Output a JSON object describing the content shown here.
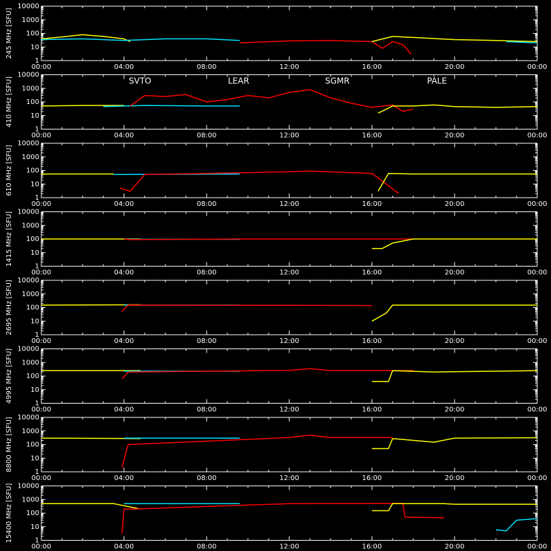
{
  "chart_data": {
    "type": "line",
    "x_axis": {
      "ticks": [
        "00:00",
        "04:00",
        "08:00",
        "12:00",
        "16:00",
        "20:00",
        "00:00"
      ],
      "range_hours": [
        0,
        24
      ]
    },
    "y_axis": {
      "scale": "log",
      "ticks": [
        "10000",
        "1000",
        "100",
        "10",
        "1"
      ],
      "range": [
        1,
        10000
      ]
    },
    "stations": [
      {
        "name": "SVTO",
        "color": "#ff0000"
      },
      {
        "name": "LEAR",
        "color": "#00e5ff"
      },
      {
        "name": "SGMR",
        "color": "#00ff00"
      },
      {
        "name": "PALE",
        "color": "#ffff00"
      }
    ],
    "panels": [
      {
        "label": "245 MHz [SFU]",
        "series": [
          {
            "station": "PALE",
            "points": [
              [
                0,
                40
              ],
              [
                1,
                55
              ],
              [
                2,
                80
              ],
              [
                3,
                60
              ],
              [
                4,
                40
              ],
              [
                4.3,
                25
              ]
            ]
          },
          {
            "station": "LEAR",
            "points": [
              [
                0,
                35
              ],
              [
                2,
                40
              ],
              [
                4,
                30
              ],
              [
                6,
                40
              ],
              [
                8,
                40
              ],
              [
                9.6,
                30
              ]
            ]
          },
          {
            "station": "SVTO",
            "points": [
              [
                9.6,
                20
              ],
              [
                12,
                28
              ],
              [
                14,
                30
              ],
              [
                16,
                25
              ],
              [
                16.5,
                8
              ],
              [
                17,
                25
              ],
              [
                17.5,
                15
              ],
              [
                17.9,
                3
              ]
            ]
          },
          {
            "station": "PALE",
            "points": [
              [
                16,
                25
              ],
              [
                17,
                60
              ],
              [
                18,
                50
              ],
              [
                20,
                35
              ],
              [
                22,
                30
              ],
              [
                24,
                25
              ]
            ]
          },
          {
            "station": "LEAR",
            "points": [
              [
                22.5,
                25
              ],
              [
                24,
                20
              ]
            ]
          }
        ]
      },
      {
        "label": "410 MHz [SFU]",
        "series": [
          {
            "station": "PALE",
            "points": [
              [
                0,
                50
              ],
              [
                2,
                55
              ],
              [
                4,
                55
              ]
            ]
          },
          {
            "station": "LEAR",
            "points": [
              [
                3,
                45
              ],
              [
                5,
                55
              ],
              [
                8,
                50
              ],
              [
                9.6,
                50
              ]
            ]
          },
          {
            "station": "SVTO",
            "points": [
              [
                4.3,
                50
              ],
              [
                5,
                300
              ],
              [
                6,
                250
              ],
              [
                7,
                350
              ],
              [
                8,
                100
              ],
              [
                9,
                150
              ],
              [
                10,
                300
              ],
              [
                11,
                200
              ],
              [
                12,
                500
              ],
              [
                13,
                800
              ],
              [
                14,
                200
              ],
              [
                15,
                80
              ],
              [
                16,
                40
              ],
              [
                17,
                60
              ],
              [
                17.5,
                20
              ],
              [
                18,
                30
              ]
            ]
          },
          {
            "station": "PALE",
            "points": [
              [
                16.3,
                15
              ],
              [
                17,
                50
              ],
              [
                18,
                50
              ],
              [
                19,
                60
              ],
              [
                20,
                45
              ],
              [
                22,
                40
              ],
              [
                24,
                45
              ]
            ]
          }
        ]
      },
      {
        "label": "610 MHz [SFU]",
        "series": [
          {
            "station": "PALE",
            "points": [
              [
                0,
                55
              ],
              [
                3.5,
                55
              ]
            ]
          },
          {
            "station": "LEAR",
            "points": [
              [
                3.5,
                50
              ],
              [
                9.6,
                55
              ]
            ]
          },
          {
            "station": "SVTO",
            "points": [
              [
                3.8,
                5
              ],
              [
                4.3,
                3
              ],
              [
                5,
                50
              ],
              [
                8,
                60
              ],
              [
                10,
                70
              ],
              [
                12,
                80
              ],
              [
                13,
                90
              ],
              [
                15,
                70
              ],
              [
                16,
                60
              ],
              [
                16.7,
                10
              ],
              [
                17.3,
                2
              ]
            ]
          },
          {
            "station": "PALE",
            "points": [
              [
                16.3,
                3
              ],
              [
                16.8,
                60
              ],
              [
                18,
                55
              ],
              [
                20,
                55
              ],
              [
                24,
                55
              ]
            ]
          }
        ]
      },
      {
        "label": "1415 MHz [SFU]",
        "series": [
          {
            "station": "PALE",
            "points": [
              [
                0,
                100
              ],
              [
                4.8,
                100
              ]
            ]
          },
          {
            "station": "LEAR",
            "points": [
              [
                4,
                95
              ],
              [
                9.6,
                95
              ]
            ]
          },
          {
            "station": "SVTO",
            "points": [
              [
                4,
                100
              ],
              [
                4.3,
                90
              ],
              [
                9.6,
                100
              ],
              [
                18,
                100
              ]
            ]
          },
          {
            "station": "PALE",
            "points": [
              [
                16,
                20
              ],
              [
                16.5,
                20
              ],
              [
                17,
                50
              ],
              [
                18,
                100
              ],
              [
                24,
                100
              ]
            ]
          }
        ]
      },
      {
        "label": "2695 MHz [SFU]",
        "series": [
          {
            "station": "PALE",
            "points": [
              [
                0,
                150
              ],
              [
                4.8,
                160
              ]
            ]
          },
          {
            "station": "LEAR",
            "points": [
              [
                4,
                150
              ],
              [
                9.6,
                150
              ]
            ]
          },
          {
            "station": "SVTO",
            "points": [
              [
                3.9,
                50
              ],
              [
                4.2,
                150
              ],
              [
                12,
                145
              ],
              [
                16,
                140
              ]
            ]
          },
          {
            "station": "PALE",
            "points": [
              [
                16,
                10
              ],
              [
                16.7,
                40
              ],
              [
                17,
                150
              ],
              [
                24,
                150
              ]
            ]
          }
        ]
      },
      {
        "label": "4995 MHz [SFU]",
        "series": [
          {
            "station": "PALE",
            "points": [
              [
                0,
                250
              ],
              [
                4.8,
                250
              ]
            ]
          },
          {
            "station": "LEAR",
            "points": [
              [
                4,
                230
              ],
              [
                9.6,
                230
              ]
            ]
          },
          {
            "station": "SVTO",
            "points": [
              [
                3.9,
                60
              ],
              [
                4.2,
                200
              ],
              [
                12,
                260
              ],
              [
                13,
                350
              ],
              [
                14,
                250
              ],
              [
                18,
                250
              ]
            ]
          },
          {
            "station": "PALE",
            "points": [
              [
                16,
                40
              ],
              [
                16.8,
                40
              ],
              [
                17,
                250
              ],
              [
                19,
                200
              ],
              [
                24,
                250
              ]
            ]
          }
        ]
      },
      {
        "label": "8800 MHz [SFU]",
        "series": [
          {
            "station": "PALE",
            "points": [
              [
                0,
                300
              ],
              [
                4.8,
                280
              ]
            ]
          },
          {
            "station": "LEAR",
            "points": [
              [
                4,
                300
              ],
              [
                9.6,
                300
              ]
            ]
          },
          {
            "station": "SVTO",
            "points": [
              [
                3.9,
                2
              ],
              [
                4.2,
                100
              ],
              [
                12,
                330
              ],
              [
                13,
                500
              ],
              [
                14,
                330
              ],
              [
                17,
                330
              ]
            ]
          },
          {
            "station": "PALE",
            "points": [
              [
                16,
                50
              ],
              [
                16.8,
                50
              ],
              [
                17,
                280
              ],
              [
                19,
                150
              ],
              [
                20,
                300
              ],
              [
                24,
                320
              ]
            ]
          }
        ]
      },
      {
        "label": "15400 MHz [SFU]",
        "series": [
          {
            "station": "PALE",
            "points": [
              [
                0,
                500
              ],
              [
                3.5,
                500
              ],
              [
                4.8,
                200
              ]
            ]
          },
          {
            "station": "LEAR",
            "points": [
              [
                4,
                500
              ],
              [
                9.6,
                500
              ]
            ]
          },
          {
            "station": "SVTO",
            "points": [
              [
                3.9,
                3
              ],
              [
                4,
                200
              ],
              [
                4.5,
                200
              ],
              [
                12,
                500
              ],
              [
                17.5,
                520
              ],
              [
                17.6,
                50
              ],
              [
                19.5,
                45
              ]
            ]
          },
          {
            "station": "PALE",
            "points": [
              [
                16,
                150
              ],
              [
                16.8,
                150
              ],
              [
                17,
                500
              ],
              [
                19.5,
                500
              ],
              [
                20,
                450
              ],
              [
                24,
                450
              ]
            ]
          },
          {
            "station": "LEAR",
            "points": [
              [
                22,
                6
              ],
              [
                22.5,
                5
              ],
              [
                23,
                30
              ],
              [
                24,
                40
              ]
            ]
          }
        ]
      }
    ]
  }
}
